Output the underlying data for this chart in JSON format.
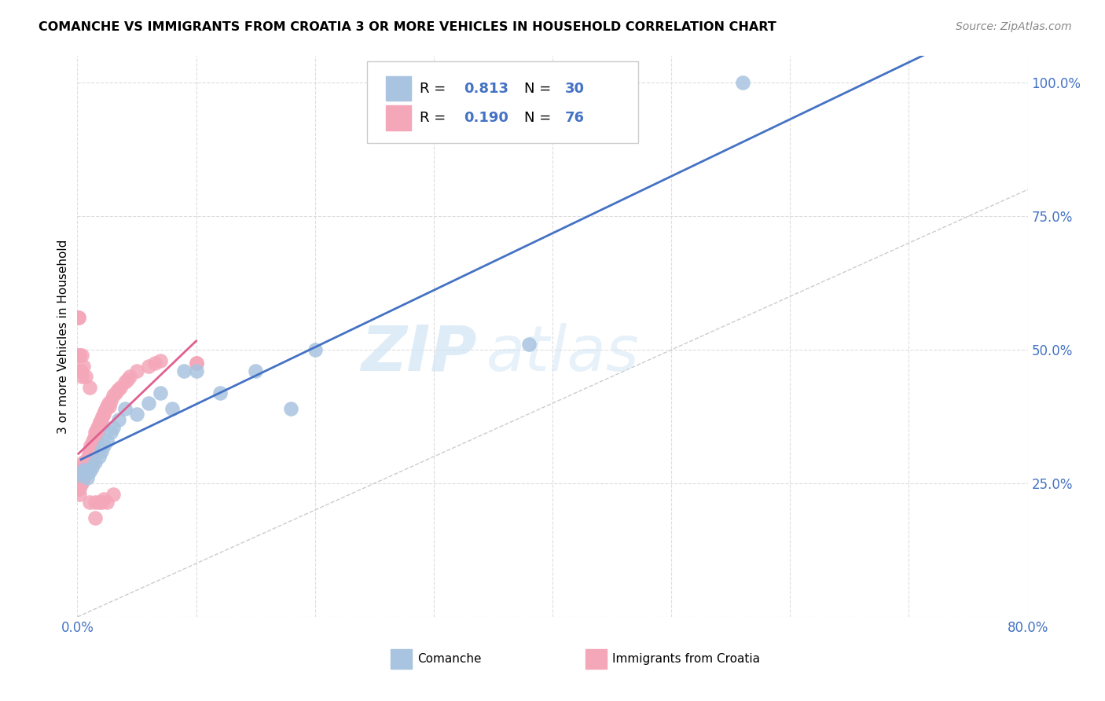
{
  "title": "COMANCHE VS IMMIGRANTS FROM CROATIA 3 OR MORE VEHICLES IN HOUSEHOLD CORRELATION CHART",
  "source": "Source: ZipAtlas.com",
  "ylabel": "3 or more Vehicles in Household",
  "xlim": [
    0.0,
    0.8
  ],
  "ylim": [
    0.0,
    1.05
  ],
  "xticks": [
    0.0,
    0.1,
    0.2,
    0.3,
    0.4,
    0.5,
    0.6,
    0.7,
    0.8
  ],
  "xticklabels": [
    "0.0%",
    "",
    "",
    "",
    "",
    "",
    "",
    "",
    "80.0%"
  ],
  "ytick_positions": [
    0.0,
    0.25,
    0.5,
    0.75,
    1.0
  ],
  "ytick_labels_right": [
    "",
    "25.0%",
    "50.0%",
    "75.0%",
    "100.0%"
  ],
  "comanche_R": 0.813,
  "comanche_N": 30,
  "croatia_R": 0.19,
  "croatia_N": 76,
  "comanche_color": "#a8c4e0",
  "croatia_color": "#f4a7b9",
  "comanche_line_color": "#4472c4",
  "croatia_line_color": "#e06090",
  "diagonal_color": "#cccccc",
  "watermark_zip": "ZIP",
  "watermark_atlas": "atlas",
  "comanche_x": [
    0.003,
    0.004,
    0.005,
    0.006,
    0.007,
    0.008,
    0.009,
    0.01,
    0.012,
    0.015,
    0.018,
    0.02,
    0.022,
    0.025,
    0.028,
    0.03,
    0.035,
    0.04,
    0.05,
    0.06,
    0.07,
    0.08,
    0.09,
    0.1,
    0.12,
    0.15,
    0.18,
    0.2,
    0.38,
    0.56
  ],
  "comanche_y": [
    0.265,
    0.27,
    0.27,
    0.275,
    0.275,
    0.26,
    0.27,
    0.272,
    0.28,
    0.29,
    0.3,
    0.31,
    0.32,
    0.33,
    0.345,
    0.355,
    0.37,
    0.39,
    0.38,
    0.4,
    0.42,
    0.39,
    0.46,
    0.46,
    0.42,
    0.46,
    0.39,
    0.5,
    0.51,
    1.0
  ],
  "croatia_x": [
    0.001,
    0.001,
    0.001,
    0.001,
    0.001,
    0.002,
    0.002,
    0.002,
    0.002,
    0.002,
    0.003,
    0.003,
    0.003,
    0.003,
    0.004,
    0.004,
    0.004,
    0.004,
    0.005,
    0.005,
    0.005,
    0.005,
    0.006,
    0.006,
    0.006,
    0.007,
    0.007,
    0.007,
    0.008,
    0.008,
    0.008,
    0.009,
    0.009,
    0.01,
    0.01,
    0.01,
    0.011,
    0.011,
    0.012,
    0.012,
    0.013,
    0.013,
    0.014,
    0.015,
    0.015,
    0.016,
    0.016,
    0.017,
    0.018,
    0.018,
    0.019,
    0.02,
    0.02,
    0.021,
    0.022,
    0.023,
    0.024,
    0.025,
    0.026,
    0.027,
    0.028,
    0.03,
    0.032,
    0.034,
    0.036,
    0.04,
    0.042,
    0.044,
    0.05,
    0.06,
    0.065,
    0.07,
    0.001,
    0.002,
    0.1
  ],
  "croatia_y": [
    0.265,
    0.27,
    0.26,
    0.25,
    0.24,
    0.26,
    0.255,
    0.25,
    0.24,
    0.23,
    0.27,
    0.26,
    0.255,
    0.25,
    0.28,
    0.27,
    0.26,
    0.25,
    0.29,
    0.28,
    0.27,
    0.26,
    0.285,
    0.275,
    0.265,
    0.29,
    0.28,
    0.27,
    0.295,
    0.285,
    0.275,
    0.3,
    0.29,
    0.31,
    0.3,
    0.29,
    0.32,
    0.31,
    0.315,
    0.305,
    0.33,
    0.32,
    0.335,
    0.345,
    0.335,
    0.35,
    0.34,
    0.355,
    0.36,
    0.35,
    0.365,
    0.37,
    0.36,
    0.375,
    0.38,
    0.385,
    0.39,
    0.395,
    0.4,
    0.395,
    0.405,
    0.415,
    0.42,
    0.425,
    0.43,
    0.44,
    0.445,
    0.45,
    0.46,
    0.47,
    0.475,
    0.48,
    0.56,
    0.49,
    0.475
  ],
  "croatia_outliers_x": [
    0.001,
    0.001,
    0.002,
    0.003,
    0.004,
    0.004,
    0.005,
    0.007,
    0.01,
    0.012,
    0.015,
    0.02,
    0.01,
    0.015,
    0.018,
    0.022,
    0.025,
    0.03,
    0.1
  ],
  "croatia_outliers_y": [
    0.56,
    0.49,
    0.49,
    0.46,
    0.45,
    0.49,
    0.47,
    0.45,
    0.43,
    0.285,
    0.215,
    0.215,
    0.215,
    0.185,
    0.215,
    0.22,
    0.215,
    0.23,
    0.475
  ]
}
